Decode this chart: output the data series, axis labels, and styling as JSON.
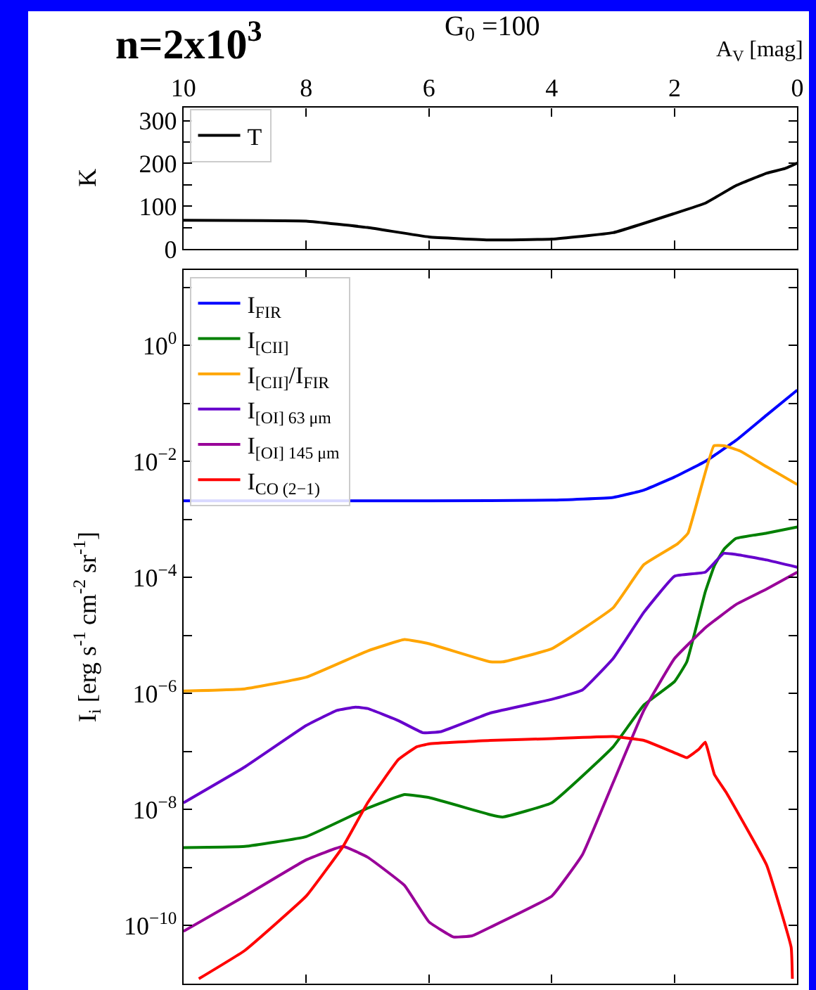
{
  "chart_data": [
    {
      "type": "line",
      "title": "n=2x10$^{3}$",
      "subtitle": "G$_{0}$ =100",
      "xlabel": "A$_{V}$ [mag]",
      "ylabel": "K",
      "xlim": [
        10,
        0
      ],
      "xticks": [
        10,
        8,
        6,
        4,
        2,
        0
      ],
      "ylim": [
        0,
        330
      ],
      "yticks": [
        0,
        {
          "value": 50,
          "label": null
        },
        100,
        {
          "value": 150,
          "label": null
        },
        200,
        {
          "value": 250,
          "label": null
        },
        300
      ],
      "legend": "top left",
      "marker": "none",
      "line_style": "solid",
      "series": [
        {
          "name": "T",
          "color": "#000000",
          "x": [
            10,
            8,
            7,
            6,
            5,
            4,
            3,
            2,
            1.5,
            1,
            0.5,
            0.2,
            0
          ],
          "values": [
            67,
            65,
            50,
            28,
            21,
            23,
            38,
            83,
            107,
            148,
            177,
            188,
            201
          ]
        }
      ]
    },
    {
      "type": "line",
      "ylabel": "I$_{i}$ [erg s$^{-1}$ cm$^{-2}$ sr$^{-1}$]",
      "log": true,
      "xlim": [
        10,
        0
      ],
      "xticks": [
        10,
        8,
        6,
        4,
        2,
        0
      ],
      "tick_labels": "y",
      "ylim": [
        1e-11,
        20
      ],
      "yticks": [
        {
          "value": 10,
          "label": null
        },
        {
          "value": 1,
          "label": "10$^{0}$"
        },
        {
          "value": 0.1,
          "label": null
        },
        {
          "value": 0.01,
          "label": "10$^{−2}$"
        },
        {
          "value": 0.001,
          "label": null
        },
        {
          "value": 0.0001,
          "label": "10$^{−4}$"
        },
        {
          "value": 1e-05,
          "label": null
        },
        {
          "value": 1e-06,
          "label": "10$^{−6}$"
        },
        {
          "value": 1e-07,
          "label": null
        },
        {
          "value": 1e-08,
          "label": "10$^{−8}$"
        },
        {
          "value": 1e-09,
          "label": null
        },
        {
          "value": 1e-10,
          "label": "10$^{−10}$"
        }
      ],
      "legend": "top left",
      "marker": "none",
      "line_style": "solid",
      "series": [
        {
          "name": "I$_{FIR}$",
          "color": "#0000ff",
          "x": [
            10,
            6,
            4,
            3,
            2.5,
            2,
            1.5,
            1,
            0.5,
            0
          ],
          "values": [
            0.0021,
            0.0021,
            0.00215,
            0.0024,
            0.0032,
            0.0054,
            0.01,
            0.023,
            0.063,
            0.17
          ]
        },
        {
          "name": "I$_{[CII]}$",
          "color": "#008000",
          "x": [
            10,
            9,
            8,
            7,
            6.4,
            6,
            5,
            4.8,
            4,
            3,
            2.5,
            2,
            1.8,
            1.5,
            1.35,
            1.19,
            1,
            0.5,
            0
          ],
          "values": [
            2.2e-09,
            2.3e-09,
            3.4e-09,
            1.05e-08,
            1.8e-08,
            1.6e-08,
            8.1e-09,
            7.4e-09,
            1.3e-08,
            1.2e-07,
            6.3e-07,
            1.6e-06,
            3.5e-06,
            5.6e-05,
            0.00016,
            0.00031,
            0.00047,
            0.00058,
            0.00074
          ]
        },
        {
          "name": "I$_{[CII]}$/I$_{FIR}$",
          "color": "#ffa500",
          "x": [
            10,
            9,
            8,
            7,
            6.4,
            6,
            5,
            4.8,
            4,
            3,
            2.5,
            1.95,
            1.78,
            1.36,
            1.19,
            0.93,
            0.5,
            0
          ],
          "values": [
            1.1e-06,
            1.2e-06,
            1.9e-06,
            5.4e-06,
            8.5e-06,
            7.2e-06,
            3.5e-06,
            3.5e-06,
            5.9e-06,
            3e-05,
            0.000166,
            0.00038,
            0.00058,
            0.0186,
            0.0186,
            0.0151,
            0.0081,
            0.004
          ]
        },
        {
          "name": "I$_{[OI] 63 μm}$",
          "color": "#6600cc",
          "x": [
            10,
            9,
            8,
            7.5,
            7.2,
            7,
            6.5,
            6.1,
            5.8,
            5,
            4,
            3.5,
            3,
            2.5,
            2,
            1.5,
            1.2,
            1,
            0.5,
            0
          ],
          "values": [
            1.3e-08,
            5.4e-08,
            2.8e-07,
            5.1e-07,
            5.8e-07,
            5.5e-07,
            3.4e-07,
            2.1e-07,
            2.2e-07,
            4.6e-07,
            7.9e-07,
            1.15e-06,
            4e-06,
            2.5e-05,
            0.000105,
            0.000123,
            0.00026,
            0.00025,
            0.0002,
            0.00015
          ]
        },
        {
          "name": "I$_{[OI] 145 μm}$",
          "color": "#990099",
          "x": [
            10,
            9,
            8,
            7.4,
            7,
            6.4,
            6,
            5.6,
            5.3,
            5,
            4,
            3.5,
            3,
            2.5,
            2,
            1.5,
            1,
            0.5,
            0
          ],
          "values": [
            7.9e-11,
            3.2e-10,
            1.35e-09,
            2.3e-09,
            1.5e-09,
            4.9e-10,
            1.15e-10,
            6.3e-11,
            6.6e-11,
            9.3e-11,
            3.2e-10,
            1.66e-09,
            2.9e-08,
            5.1e-07,
            4e-06,
            1.35e-05,
            3.4e-05,
            6.3e-05,
            0.000123
          ]
        },
        {
          "name": "I$_{CO (2−1)}$",
          "color": "#ff0000",
          "x": [
            9.75,
            9,
            8,
            7.4,
            7,
            6.5,
            6.2,
            6,
            5,
            4,
            3,
            2.5,
            2,
            1.8,
            1.6,
            1.5,
            1.35,
            1.15,
            0.5,
            0.1,
            0.08
          ],
          "values": [
            1.2e-11,
            3.7e-11,
            3.2e-10,
            2.3e-09,
            1.3e-08,
            7.2e-08,
            1.2e-07,
            1.35e-07,
            1.55e-07,
            1.66e-07,
            1.8e-07,
            1.55e-07,
            9.5e-08,
            7.8e-08,
            1.1e-07,
            1.45e-07,
            4e-08,
            1.9e-08,
            1.1e-09,
            4.2e-11,
            1.2e-11
          ]
        }
      ]
    }
  ]
}
